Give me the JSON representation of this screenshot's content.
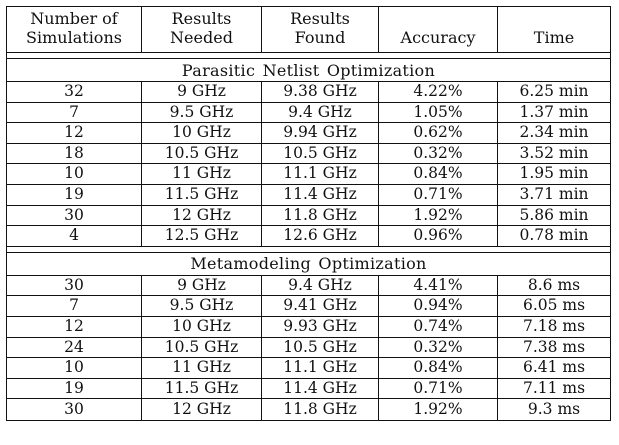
{
  "headers": [
    {
      "line1": "Number of",
      "line2": "Simulations"
    },
    {
      "line1": "Results",
      "line2": "Needed"
    },
    {
      "line1": "Results",
      "line2": "Found"
    },
    {
      "line1": "",
      "line2": "Accuracy"
    },
    {
      "line1": "",
      "line2": "Time"
    }
  ],
  "sections": [
    {
      "title": "Parasitic Netlist Optimization",
      "rows": [
        [
          "32",
          "9 GHz",
          "9.38 GHz",
          "4.22%",
          "6.25 min"
        ],
        [
          "7",
          "9.5 GHz",
          "9.4 GHz",
          "1.05%",
          "1.37 min"
        ],
        [
          "12",
          "10 GHz",
          "9.94 GHz",
          "0.62%",
          "2.34 min"
        ],
        [
          "18",
          "10.5 GHz",
          "10.5 GHz",
          "0.32%",
          "3.52 min"
        ],
        [
          "10",
          "11 GHz",
          "11.1 GHz",
          "0.84%",
          "1.95 min"
        ],
        [
          "19",
          "11.5 GHz",
          "11.4 GHz",
          "0.71%",
          "3.71 min"
        ],
        [
          "30",
          "12 GHz",
          "11.8 GHz",
          "1.92%",
          "5.86 min"
        ],
        [
          "4",
          "12.5 GHz",
          "12.6 GHz",
          "0.96%",
          "0.78 min"
        ]
      ]
    },
    {
      "title": "Metamodeling Optimization",
      "rows": [
        [
          "30",
          "9 GHz",
          "9.4 GHz",
          "4.41%",
          "8.6 ms"
        ],
        [
          "7",
          "9.5 GHz",
          "9.41 GHz",
          "0.94%",
          "6.05 ms"
        ],
        [
          "12",
          "10 GHz",
          "9.93 GHz",
          "0.74%",
          "7.18 ms"
        ],
        [
          "24",
          "10.5 GHz",
          "10.5 GHz",
          "0.32%",
          "7.38 ms"
        ],
        [
          "10",
          "11 GHz",
          "11.1 GHz",
          "0.84%",
          "6.41 ms"
        ],
        [
          "19",
          "11.5 GHz",
          "11.4 GHz",
          "0.71%",
          "7.11 ms"
        ],
        [
          "30",
          "12 GHz",
          "11.8 GHz",
          "1.92%",
          "9.3 ms"
        ]
      ]
    }
  ]
}
